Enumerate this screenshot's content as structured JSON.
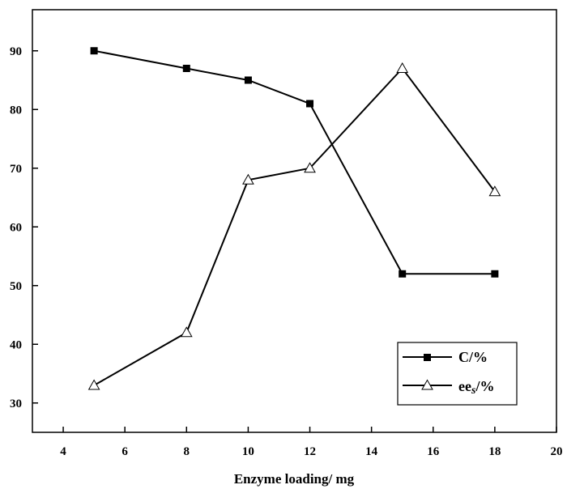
{
  "chart_data": {
    "type": "line",
    "title": "",
    "xlabel": "Enzyme loading/ mg",
    "ylabel": "",
    "xlim": [
      3,
      20
    ],
    "ylim": [
      25,
      97
    ],
    "x_ticks": [
      4,
      6,
      8,
      10,
      12,
      14,
      16,
      18,
      20
    ],
    "y_ticks": [
      30,
      40,
      50,
      60,
      70,
      80,
      90
    ],
    "grid": false,
    "legend_position": "bottom-right",
    "series": [
      {
        "name": "C/%",
        "marker": "filled-square",
        "color": "#000000",
        "x": [
          5,
          8,
          10,
          12,
          15,
          18
        ],
        "y": [
          90,
          87,
          85,
          81,
          52,
          52
        ]
      },
      {
        "name": "ees/%",
        "name_main": "ee",
        "name_sub": "s",
        "name_unit": "/%",
        "marker": "open-triangle",
        "color": "#000000",
        "x": [
          5,
          8,
          10,
          12,
          15,
          18
        ],
        "y": [
          33,
          42,
          68,
          70,
          87,
          66
        ]
      }
    ]
  }
}
